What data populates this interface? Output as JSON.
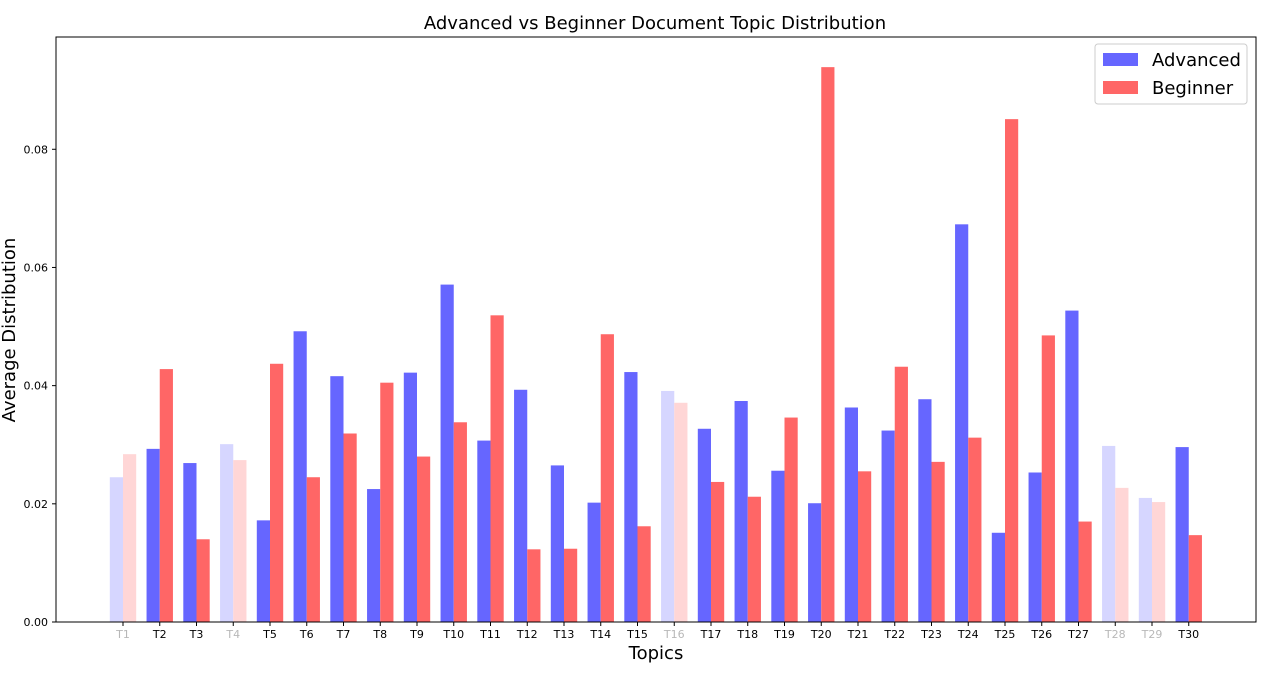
{
  "colors": {
    "advanced": "#6666ff",
    "beginner": "#ff6666",
    "advanced_faded": "#d6d6ff",
    "beginner_faded": "#ffd6d6",
    "faded_tick_label": "#b8b8b8",
    "axis": "#000000",
    "background": "#ffffff"
  },
  "chart_data": {
    "type": "bar",
    "title": "Advanced vs Beginner Document Topic Distribution",
    "xlabel": "Topics",
    "ylabel": "Average Distribution",
    "ylim": [
      0,
      0.099
    ],
    "yticks": [
      "0.00",
      "0.02",
      "0.04",
      "0.06",
      "0.08"
    ],
    "ytick_values": [
      0,
      0.02,
      0.04,
      0.06,
      0.08
    ],
    "grid": false,
    "legend_position": "top-right",
    "categories": [
      "T1",
      "T2",
      "T3",
      "T4",
      "T5",
      "T6",
      "T7",
      "T8",
      "T9",
      "T10",
      "T11",
      "T12",
      "T13",
      "T14",
      "T15",
      "T16",
      "T17",
      "T18",
      "T19",
      "T20",
      "T21",
      "T22",
      "T23",
      "T24",
      "T25",
      "T26",
      "T27",
      "T28",
      "T29",
      "T30"
    ],
    "faded_categories": [
      "T1",
      "T4",
      "T16",
      "T28",
      "T29"
    ],
    "series": [
      {
        "name": "Advanced",
        "values": [
          0.0245,
          0.0293,
          0.0269,
          0.0301,
          0.0172,
          0.0492,
          0.0416,
          0.0225,
          0.0422,
          0.0571,
          0.0307,
          0.0393,
          0.0265,
          0.0202,
          0.0423,
          0.0391,
          0.0327,
          0.0374,
          0.0256,
          0.0201,
          0.0363,
          0.0324,
          0.0377,
          0.0673,
          0.0151,
          0.0253,
          0.0527,
          0.0298,
          0.021,
          0.0296
        ]
      },
      {
        "name": "Beginner",
        "values": [
          0.0284,
          0.0428,
          0.014,
          0.0274,
          0.0437,
          0.0245,
          0.0319,
          0.0405,
          0.028,
          0.0338,
          0.0519,
          0.0123,
          0.0124,
          0.0487,
          0.0162,
          0.0371,
          0.0237,
          0.0212,
          0.0346,
          0.0939,
          0.0255,
          0.0432,
          0.0271,
          0.0312,
          0.0851,
          0.0485,
          0.017,
          0.0227,
          0.0203,
          0.0147
        ]
      }
    ]
  }
}
